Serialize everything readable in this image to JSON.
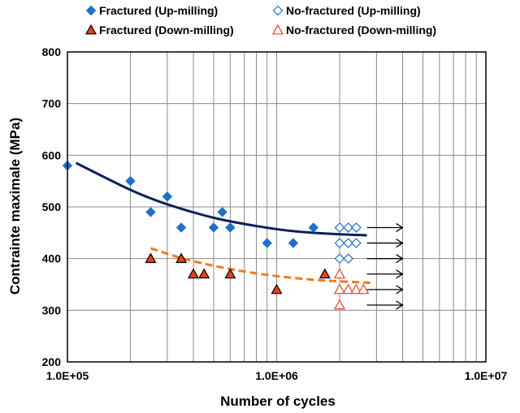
{
  "chart_data": {
    "type": "scatter",
    "xlabel": "Number of cycles",
    "ylabel": "Contrainte maximale (MPa)",
    "x_scale": "log",
    "xlim": [
      100000,
      10000000
    ],
    "ylim": [
      200,
      800
    ],
    "x_ticks": [
      {
        "value": 100000,
        "label": "1.0E+05"
      },
      {
        "value": 1000000,
        "label": "1.0E+06"
      },
      {
        "value": 10000000,
        "label": "1.0E+07"
      }
    ],
    "y_ticks": [
      {
        "value": 200,
        "label": "200"
      },
      {
        "value": 300,
        "label": "300"
      },
      {
        "value": 400,
        "label": "400"
      },
      {
        "value": 500,
        "label": "500"
      },
      {
        "value": 600,
        "label": "600"
      },
      {
        "value": 700,
        "label": "700"
      },
      {
        "value": 800,
        "label": "800"
      }
    ],
    "grid": {
      "vertical_minor": true,
      "horizontal": true
    },
    "legend_position": "top",
    "series": [
      {
        "name": "Fractured (Up-milling)",
        "marker": "diamond-filled",
        "color": "#1f6fc4",
        "points": [
          [
            100000,
            580
          ],
          [
            200000,
            550
          ],
          [
            250000,
            490
          ],
          [
            300000,
            520
          ],
          [
            350000,
            460
          ],
          [
            500000,
            460
          ],
          [
            550000,
            490
          ],
          [
            600000,
            460
          ],
          [
            900000,
            430
          ],
          [
            1200000,
            430
          ],
          [
            1500000,
            460
          ]
        ]
      },
      {
        "name": "No-fractured (Up-milling)",
        "marker": "diamond-open",
        "color": "#1f6fc4",
        "runout": true,
        "points": [
          [
            2000000,
            460
          ],
          [
            2200000,
            460
          ],
          [
            2400000,
            460
          ],
          [
            2000000,
            430
          ],
          [
            2200000,
            430
          ],
          [
            2400000,
            430
          ],
          [
            2000000,
            400
          ],
          [
            2200000,
            400
          ]
        ]
      },
      {
        "name": "Fractured (Down-milling)",
        "marker": "triangle-filled",
        "color": "#e8401a",
        "points": [
          [
            250000,
            400
          ],
          [
            350000,
            400
          ],
          [
            400000,
            370
          ],
          [
            450000,
            370
          ],
          [
            600000,
            370
          ],
          [
            1000000,
            340
          ],
          [
            1700000,
            370
          ]
        ]
      },
      {
        "name": "No-fractured (Down-milling)",
        "marker": "triangle-open",
        "color": "#e8401a",
        "runout": true,
        "points": [
          [
            2000000,
            370
          ],
          [
            2000000,
            340
          ],
          [
            2200000,
            340
          ],
          [
            2400000,
            340
          ],
          [
            2600000,
            340
          ],
          [
            2000000,
            310
          ]
        ]
      }
    ],
    "trend_lines": [
      {
        "for": "Fractured (Up-milling)",
        "style": "solid",
        "color": "#0d1f5c",
        "points": [
          [
            110000,
            585
          ],
          [
            200000,
            533
          ],
          [
            300000,
            505
          ],
          [
            500000,
            479
          ],
          [
            800000,
            463
          ],
          [
            1200000,
            453
          ],
          [
            1800000,
            448
          ],
          [
            2700000,
            445
          ]
        ]
      },
      {
        "for": "Fractured (Down-milling)",
        "style": "dashed",
        "color": "#f07a1a",
        "points": [
          [
            250000,
            420
          ],
          [
            350000,
            401
          ],
          [
            500000,
            386
          ],
          [
            700000,
            375
          ],
          [
            1000000,
            366
          ],
          [
            1500000,
            359
          ],
          [
            2000000,
            356
          ],
          [
            2800000,
            353
          ]
        ]
      }
    ],
    "runout_arrow_levels": [
      460,
      430,
      400,
      370,
      340,
      310
    ],
    "runout_arrow_range": [
      2700000,
      4000000
    ]
  }
}
